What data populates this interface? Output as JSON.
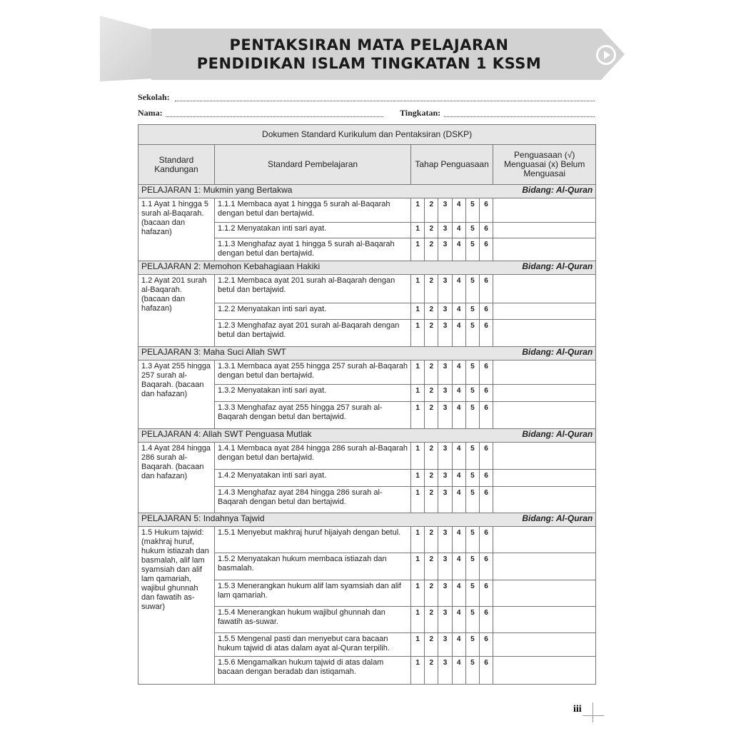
{
  "header": {
    "title_line1": "PENTAKSIRAN MATA PELAJARAN",
    "title_line2": "PENDIDIKAN ISLAM TINGKATAN 1 KSSM"
  },
  "form": {
    "school_label": "Sekolah:",
    "name_label": "Nama:",
    "form_label": "Tingkatan:"
  },
  "table": {
    "title": "Dokumen Standard Kurikulum dan Pentaksiran (DSKP)",
    "col_kandungan": "Standard Kandungan",
    "col_pembelajaran": "Standard Pembelajaran",
    "col_tahap": "Tahap Penguasaan",
    "col_penguasaan": "Penguasaan (√) Menguasai (x) Belum Menguasai",
    "levels": [
      "1",
      "2",
      "3",
      "4",
      "5",
      "6"
    ],
    "sections": [
      {
        "title": "PELAJARAN 1: Mukmin yang Bertakwa",
        "bidang": "Bidang: Al-Quran",
        "kandungan": "1.1 Ayat 1 hingga 5 surah al-Baqarah. (bacaan dan hafazan)",
        "items": [
          "1.1.1 Membaca ayat 1 hingga 5 surah al-Baqarah dengan betul dan bertajwid.",
          "1.1.2 Menyatakan inti sari ayat.",
          "1.1.3 Menghafaz ayat 1 hingga 5 surah al-Baqarah dengan betul dan bertajwid."
        ]
      },
      {
        "title": "PELAJARAN 2: Memohon Kebahagiaan Hakiki",
        "bidang": "Bidang: Al-Quran",
        "kandungan": "1.2 Ayat 201 surah al-Baqarah. (bacaan dan hafazan)",
        "items": [
          "1.2.1 Membaca ayat 201 surah al-Baqarah dengan betul dan bertajwid.",
          "1.2.2 Menyatakan inti sari ayat.",
          "1.2.3 Menghafaz ayat 201 surah al-Baqarah dengan betul dan bertajwid."
        ]
      },
      {
        "title": "PELAJARAN 3: Maha Suci Allah SWT",
        "bidang": "Bidang: Al-Quran",
        "kandungan": "1.3 Ayat 255 hingga 257 surah al-Baqarah. (bacaan dan hafazan)",
        "items": [
          "1.3.1 Membaca ayat 255 hingga 257 surah al-Baqarah dengan betul dan bertajwid.",
          "1.3.2 Menyatakan inti sari ayat.",
          "1.3.3 Menghafaz ayat 255 hingga 257 surah al-Baqarah dengan betul dan bertajwid."
        ]
      },
      {
        "title": "PELAJARAN 4: Allah SWT Penguasa Mutlak",
        "bidang": "Bidang: Al-Quran",
        "kandungan": "1.4 Ayat 284 hingga 286 surah al-Baqarah. (bacaan dan hafazan)",
        "items": [
          "1.4.1 Membaca ayat 284 hingga 286 surah al-Baqarah dengan betul dan bertajwid.",
          "1.4.2 Menyatakan inti sari ayat.",
          "1.4.3 Menghafaz ayat 284 hingga 286 surah al-Baqarah dengan betul dan bertajwid."
        ]
      },
      {
        "title": "PELAJARAN 5: Indahnya Tajwid",
        "bidang": "Bidang: Al-Quran",
        "kandungan": "1.5 Hukum tajwid: (makhraj huruf, hukum istiazah dan basmalah, alif lam syamsiah dan alif lam qamariah, wajibul ghunnah dan fawatih as-suwar)",
        "items": [
          "1.5.1 Menyebut makhraj huruf hijaiyah dengan betul.",
          "1.5.2 Menyatakan hukum membaca istiazah dan basmalah.",
          "1.5.3 Menerangkan hukum alif lam syamsiah dan alif lam qamariah.",
          "1.5.4 Menerangkan hukum wajibul ghunnah dan fawatih as-suwar.",
          "1.5.5 Mengenal pasti dan menyebut cara bacaan hukum tajwid di atas dalam ayat al-Quran terpilih.",
          "1.5.6 Mengamalkan hukum tajwid di atas dalam bacaan dengan beradab dan istiqamah."
        ]
      }
    ]
  },
  "footer": {
    "page_number": "iii"
  }
}
